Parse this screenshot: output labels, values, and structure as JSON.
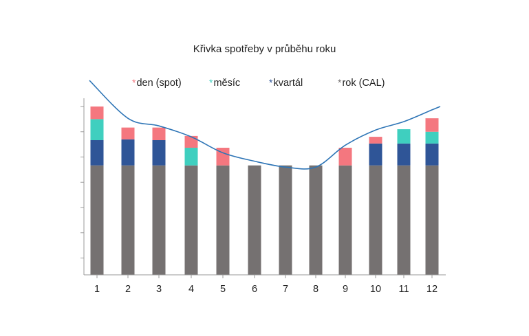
{
  "chart_data": {
    "type": "bar",
    "stacked": true,
    "title": "Křivka spotřeby v průběhu roku",
    "categories": [
      "1",
      "2",
      "3",
      "4",
      "5",
      "6",
      "7",
      "8",
      "9",
      "10",
      "11",
      "12"
    ],
    "y_range": [
      0,
      100
    ],
    "series": [
      {
        "name": "rok (CAL)",
        "marker": "*",
        "color": "#757171",
        "values": [
          65,
          65,
          65,
          65,
          65,
          65,
          65,
          65,
          65,
          65,
          65,
          65
        ]
      },
      {
        "name": "kvartál",
        "marker": "*",
        "color": "#2F5597",
        "values": [
          15,
          15.5,
          15,
          0,
          0,
          0,
          0,
          0,
          0,
          13,
          13,
          13
        ]
      },
      {
        "name": "měsíc",
        "marker": "*",
        "color": "#3FCFBF",
        "values": [
          12.5,
          0,
          0,
          10.5,
          0,
          0,
          0,
          0,
          0,
          0,
          8.5,
          7
        ]
      },
      {
        "name": "den (spot)",
        "marker": "*",
        "color": "#F4777F",
        "values": [
          7.5,
          7,
          7.5,
          7,
          10.5,
          0,
          0,
          0,
          10.5,
          4,
          0,
          8
        ]
      }
    ],
    "consumption_curve": {
      "color": "#2E75B6",
      "values": [
        112,
        93,
        88.5,
        82,
        72.5,
        67.5,
        64,
        64,
        77,
        86,
        91,
        98
      ]
    },
    "legend_order": [
      "den (spot)",
      "měsíc",
      "kvartál",
      "rok (CAL)"
    ],
    "legend_position": "top",
    "grid": false
  }
}
